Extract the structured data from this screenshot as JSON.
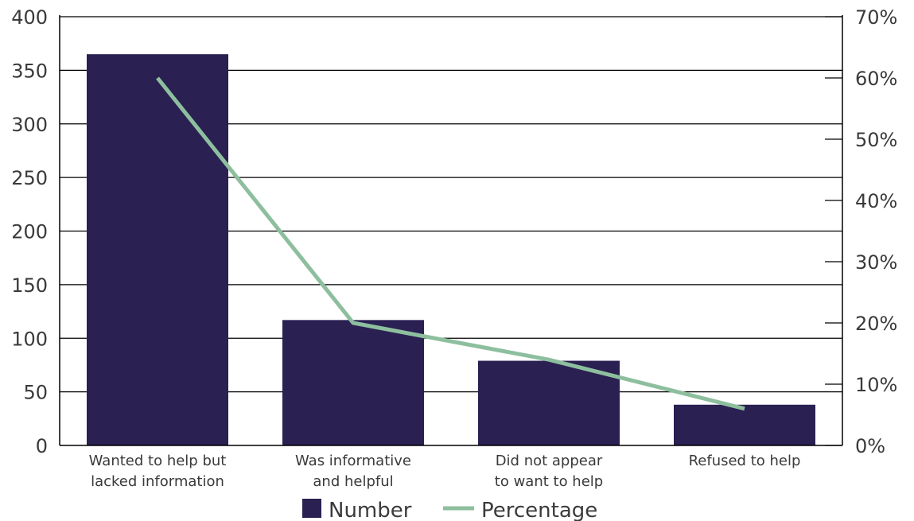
{
  "chart_data": {
    "type": "bar",
    "categories": [
      [
        "Wanted to help but",
        "lacked information"
      ],
      [
        "Was informative",
        "and helpful"
      ],
      [
        "Did not appear",
        "to want to help"
      ],
      [
        "Refused to help"
      ]
    ],
    "series": [
      {
        "name": "Number",
        "type": "bar",
        "axis": "left",
        "values": [
          365,
          117,
          79,
          38
        ],
        "color": "#2a2052"
      },
      {
        "name": "Percentage",
        "type": "line",
        "axis": "right",
        "values": [
          60,
          20,
          14,
          6
        ],
        "color": "#8dbf9e"
      }
    ],
    "ylim": [
      0,
      400
    ],
    "yticks": [
      "0",
      "50",
      "100",
      "150",
      "200",
      "250",
      "300",
      "350",
      "400"
    ],
    "y2lim": [
      0,
      70
    ],
    "y2ticks": [
      "0%",
      "10%",
      "20%",
      "30%",
      "40%",
      "50%",
      "60%",
      "70%"
    ],
    "grid": true,
    "legend_position": "bottom"
  },
  "colors": {
    "grid": "#000000",
    "axis": "#000000",
    "text": "#3a3a3a"
  }
}
